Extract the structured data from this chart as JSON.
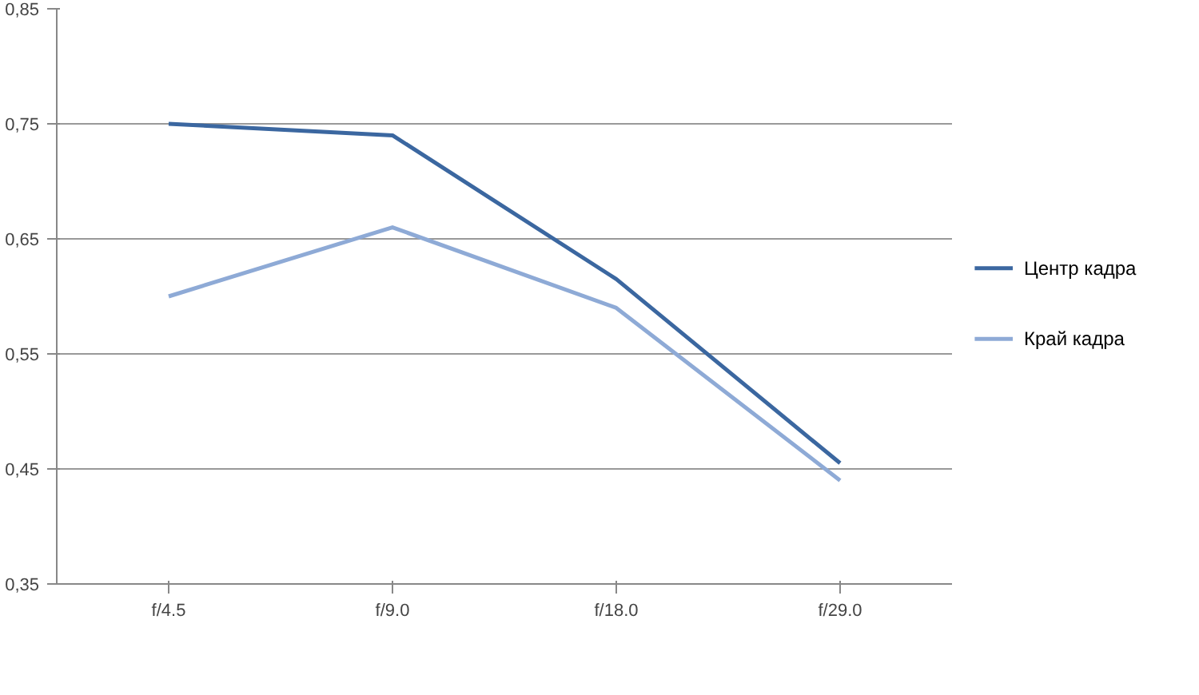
{
  "chart_data": {
    "type": "line",
    "categories": [
      "f/4.5",
      "f/9.0",
      "f/18.0",
      "f/29.0"
    ],
    "series": [
      {
        "name": "Центр кадра",
        "color": "#3b67a0",
        "values": [
          0.75,
          0.74,
          0.615,
          0.455
        ]
      },
      {
        "name": "Край кадра",
        "color": "#8eaad6",
        "values": [
          0.6,
          0.66,
          0.59,
          0.44
        ]
      }
    ],
    "ylim": [
      0.35,
      0.85
    ],
    "yticks": [
      {
        "value": 0.35,
        "label": "0,35"
      },
      {
        "value": 0.45,
        "label": "0,45"
      },
      {
        "value": 0.55,
        "label": "0,55"
      },
      {
        "value": 0.65,
        "label": "0,65"
      },
      {
        "value": 0.75,
        "label": "0,75"
      },
      {
        "value": 0.85,
        "label": "0,85"
      }
    ],
    "grid": "y",
    "legend": "right",
    "marker": "none",
    "line_style": "solid"
  }
}
